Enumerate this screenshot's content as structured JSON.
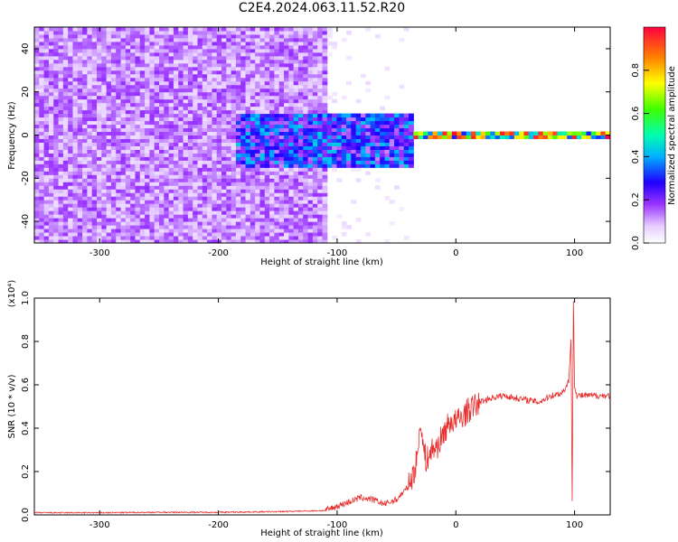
{
  "title": "C2E4.2024.063.11.52.R20",
  "chart_data": [
    {
      "type": "heatmap",
      "title": "C2E4.2024.063.11.52.R20",
      "xlabel": "Height of straight line (km)",
      "ylabel": "Frequency (Hz)",
      "xlim": [
        -355,
        130
      ],
      "ylim": [
        -50,
        50
      ],
      "xticks": [
        -300,
        -200,
        -100,
        0,
        100
      ],
      "yticks": [
        -40,
        -20,
        0,
        20,
        40
      ],
      "colorbar": {
        "label": "Normalized spectral amplitude",
        "range": [
          0.0,
          1.0
        ],
        "ticks": [
          0.0,
          0.2,
          0.4,
          0.6,
          0.8
        ],
        "colors": [
          "#ffffff",
          "#cc99ff",
          "#7a00ff",
          "#0000ff",
          "#00cfff",
          "#00ff40",
          "#ffff00",
          "#ff8000",
          "#ff0040"
        ]
      },
      "bands": [
        {
          "x_range": [
            -355,
            -110
          ],
          "freq_range": [
            -50,
            50
          ],
          "amplitude": 0.15,
          "description": "broadband noise"
        },
        {
          "x_range": [
            -185,
            -35
          ],
          "freq_range": [
            -15,
            10
          ],
          "amplitude": 0.35
        },
        {
          "x_range": [
            -35,
            130
          ],
          "freq_range": [
            -2,
            2
          ],
          "amplitude": 0.8
        }
      ]
    },
    {
      "type": "line",
      "xlabel": "Height of straight line (km)",
      "ylabel": "SNR (10 * v/v)",
      "y_multiplier": "(x10⁴)",
      "xlim": [
        -355,
        130
      ],
      "ylim": [
        0.0,
        1.0
      ],
      "xticks": [
        -300,
        -200,
        -100,
        0,
        100
      ],
      "yticks": [
        0.0,
        0.2,
        0.4,
        0.6,
        0.8,
        1.0
      ],
      "series": [
        {
          "color": "#e83030",
          "x": [
            -355,
            -300,
            -250,
            -200,
            -150,
            -110,
            -100,
            -90,
            -80,
            -70,
            -60,
            -50,
            -45,
            -40,
            -35,
            -32,
            -30,
            -28,
            -25,
            -20,
            -15,
            -10,
            -5,
            0,
            5,
            10,
            15,
            20,
            30,
            40,
            50,
            60,
            70,
            80,
            88,
            92,
            95,
            97,
            98,
            99,
            100,
            102,
            105,
            110,
            120,
            130
          ],
          "y": [
            0.01,
            0.01,
            0.012,
            0.012,
            0.015,
            0.02,
            0.04,
            0.06,
            0.08,
            0.07,
            0.05,
            0.07,
            0.1,
            0.13,
            0.2,
            0.28,
            0.45,
            0.33,
            0.25,
            0.3,
            0.32,
            0.38,
            0.43,
            0.43,
            0.45,
            0.48,
            0.5,
            0.52,
            0.54,
            0.55,
            0.54,
            0.53,
            0.52,
            0.55,
            0.56,
            0.58,
            0.62,
            0.8,
            0.05,
            1.0,
            0.6,
            0.55,
            0.55,
            0.55,
            0.55,
            0.55
          ]
        }
      ]
    }
  ]
}
